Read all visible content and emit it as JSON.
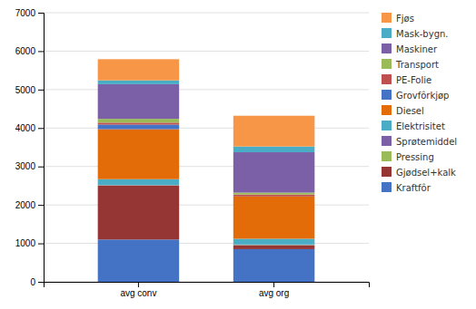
{
  "chart_data": {
    "type": "bar",
    "stacked": true,
    "categories": [
      "avg conv",
      "avg org"
    ],
    "series": [
      {
        "name": "Kraftfôr",
        "color": "#4472C4",
        "values": [
          1100,
          850
        ]
      },
      {
        "name": "Gjødsel+kalk",
        "color": "#963634",
        "values": [
          1400,
          100
        ]
      },
      {
        "name": "Pressing",
        "color": "#9BBB59",
        "values": [
          10,
          10
        ]
      },
      {
        "name": "Sprøtemiddel",
        "color": "#7B60A8",
        "values": [
          10,
          10
        ]
      },
      {
        "name": "Elektrisitet",
        "color": "#4BACC6",
        "values": [
          150,
          150
        ]
      },
      {
        "name": "Diesel",
        "color": "#E36C09",
        "values": [
          1300,
          1100
        ]
      },
      {
        "name": "Grovfôrkjøp",
        "color": "#4472C4",
        "values": [
          120,
          0
        ]
      },
      {
        "name": "PE-Folie",
        "color": "#C0504D",
        "values": [
          50,
          50
        ]
      },
      {
        "name": "Transport",
        "color": "#9BBB59",
        "values": [
          100,
          50
        ]
      },
      {
        "name": "Maskiner",
        "color": "#7B60A8",
        "values": [
          900,
          1050
        ]
      },
      {
        "name": "Mask-bygn.",
        "color": "#4BACC6",
        "values": [
          100,
          150
        ]
      },
      {
        "name": "Fjøs",
        "color": "#F79646",
        "values": [
          550,
          800
        ]
      }
    ],
    "ylim": [
      0,
      7000
    ],
    "yticks": [
      0,
      1000,
      2000,
      3000,
      4000,
      5000,
      6000,
      7000
    ],
    "grid": true,
    "legend": "right"
  }
}
